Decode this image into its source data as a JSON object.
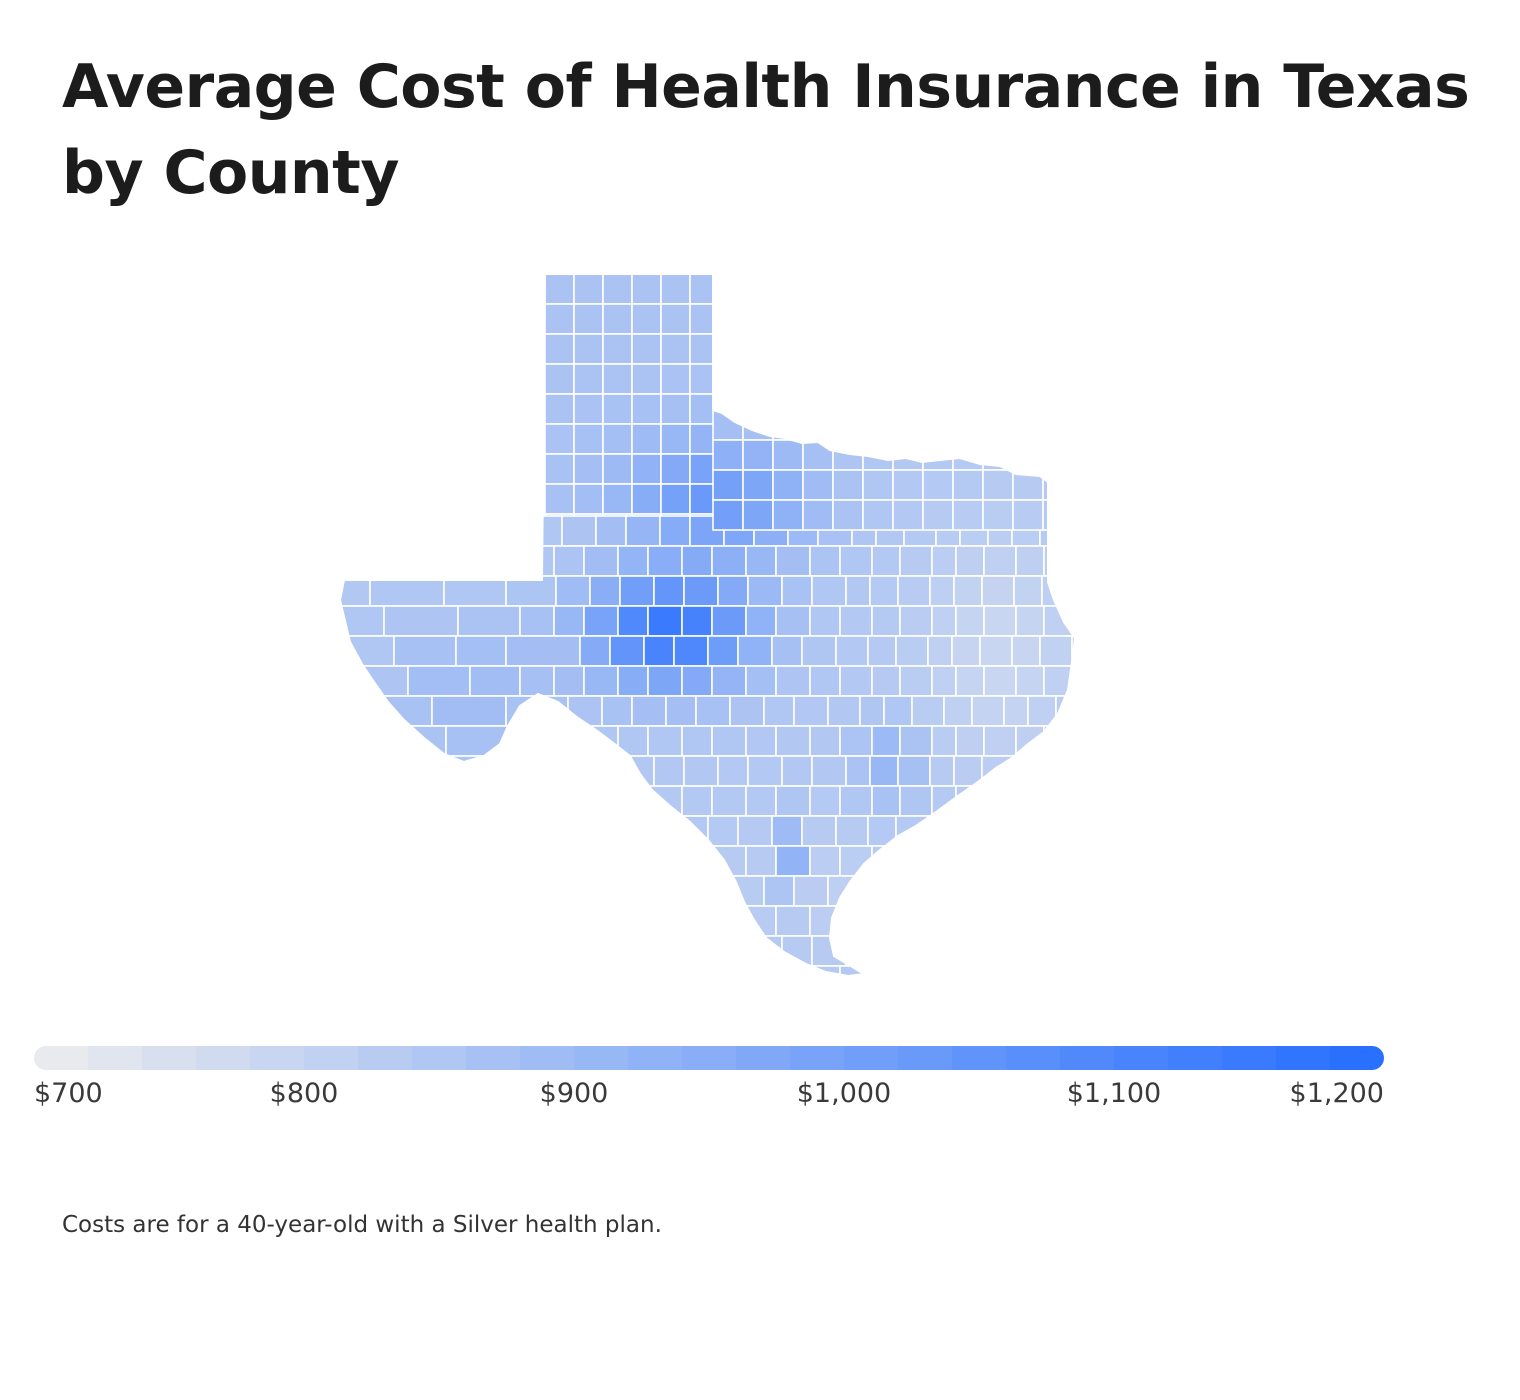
{
  "title": "Average Cost of Health Insurance in Texas by County",
  "footnote": "Costs are for a 40-year-old with a Silver health plan.",
  "colors": {
    "low": "#e8eaee",
    "high": "#2970ff",
    "border": "#ffffff"
  },
  "legend": {
    "min": 700,
    "max": 1200,
    "steps": 25,
    "labels": [
      "$700",
      "$800",
      "$900",
      "$1,000",
      "$1,100",
      "$1,200"
    ]
  }
}
